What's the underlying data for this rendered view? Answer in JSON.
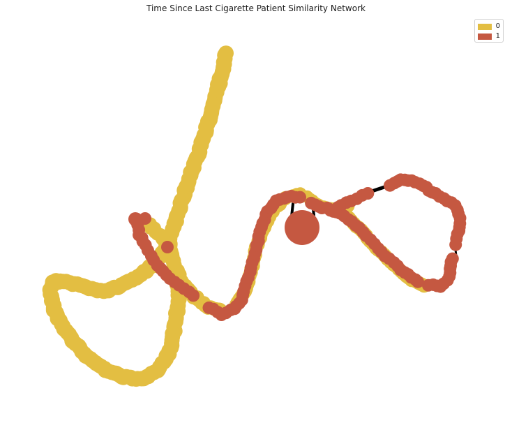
{
  "title": "Time Since Last Cigarette Patient Similarity Network",
  "colors": {
    "group_0": "#E3BE42",
    "group_1": "#C55841",
    "edge": "#000000"
  },
  "legend": [
    {
      "label": "0",
      "color": "#E3BE42"
    },
    {
      "label": "1",
      "color": "#C55841"
    }
  ]
}
